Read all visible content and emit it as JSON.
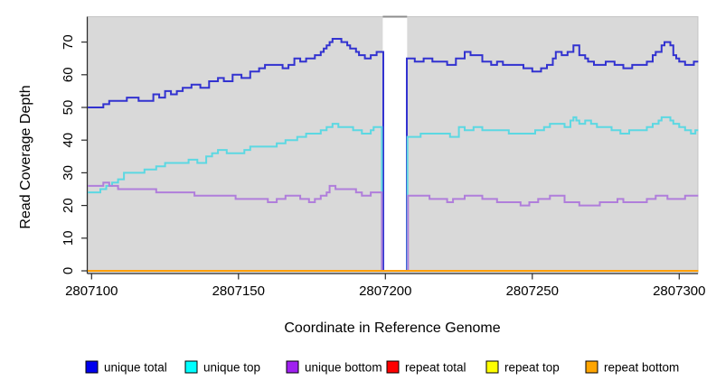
{
  "chart_data": {
    "type": "line",
    "subtype": "step",
    "title": "",
    "xlabel": "Coordinate in Reference Genome",
    "ylabel": "Read Coverage Depth",
    "xlim": [
      2807098.7,
      2807306.5
    ],
    "ylim": [
      0,
      78
    ],
    "x_ticks": [
      2807100,
      2807150,
      2807200,
      2807250,
      2807300
    ],
    "y_ticks": [
      0,
      10,
      20,
      30,
      40,
      50,
      60,
      70
    ],
    "plot_bg": "#d9d9d9",
    "grid": false,
    "legend_position": "bottom",
    "gap_region": {
      "x_start": 2807199.1,
      "x_end": 2807207.4
    },
    "series": [
      {
        "name": "unique total",
        "legend_color": "#0000ee",
        "line_color": "#3232d0",
        "values": [
          [
            2807098.7,
            50
          ],
          [
            2807104,
            51
          ],
          [
            2807106,
            52
          ],
          [
            2807112,
            53
          ],
          [
            2807116,
            52
          ],
          [
            2807121,
            54
          ],
          [
            2807123,
            53
          ],
          [
            2807125,
            55
          ],
          [
            2807127,
            54
          ],
          [
            2807129,
            55
          ],
          [
            2807131,
            56
          ],
          [
            2807134,
            57
          ],
          [
            2807137,
            56
          ],
          [
            2807140,
            58
          ],
          [
            2807143,
            59
          ],
          [
            2807145,
            58
          ],
          [
            2807148,
            60
          ],
          [
            2807151,
            59
          ],
          [
            2807154,
            61
          ],
          [
            2807157,
            62
          ],
          [
            2807159,
            63
          ],
          [
            2807165,
            62
          ],
          [
            2807167,
            63
          ],
          [
            2807169,
            65
          ],
          [
            2807171,
            64
          ],
          [
            2807173,
            65
          ],
          [
            2807176,
            66
          ],
          [
            2807178,
            67
          ],
          [
            2807179,
            68
          ],
          [
            2807180,
            69
          ],
          [
            2807181,
            70
          ],
          [
            2807182,
            71
          ],
          [
            2807185,
            70
          ],
          [
            2807187,
            69
          ],
          [
            2807188,
            68
          ],
          [
            2807190,
            67
          ],
          [
            2807191,
            66
          ],
          [
            2807193,
            65
          ],
          [
            2807195,
            66
          ],
          [
            2807197,
            67
          ],
          [
            2807199.3,
            0
          ],
          [
            2807207.3,
            65
          ],
          [
            2807210,
            64
          ],
          [
            2807213,
            65
          ],
          [
            2807216,
            64
          ],
          [
            2807221,
            63
          ],
          [
            2807224,
            65
          ],
          [
            2807227,
            67
          ],
          [
            2807229,
            66
          ],
          [
            2807233,
            64
          ],
          [
            2807236,
            63
          ],
          [
            2807238,
            64
          ],
          [
            2807240,
            63
          ],
          [
            2807247,
            62
          ],
          [
            2807250,
            61
          ],
          [
            2807253,
            62
          ],
          [
            2807255,
            63
          ],
          [
            2807257,
            65
          ],
          [
            2807258,
            67
          ],
          [
            2807260,
            66
          ],
          [
            2807262,
            67
          ],
          [
            2807264,
            69
          ],
          [
            2807266,
            66
          ],
          [
            2807268,
            65
          ],
          [
            2807269,
            64
          ],
          [
            2807271,
            63
          ],
          [
            2807275,
            64
          ],
          [
            2807278,
            63
          ],
          [
            2807281,
            62
          ],
          [
            2807284,
            63
          ],
          [
            2807289,
            64
          ],
          [
            2807291,
            66
          ],
          [
            2807292,
            67
          ],
          [
            2807294,
            69
          ],
          [
            2807295,
            70
          ],
          [
            2807297,
            69
          ],
          [
            2807298,
            66
          ],
          [
            2807299,
            65
          ],
          [
            2807300,
            64
          ],
          [
            2807302,
            63
          ],
          [
            2807305,
            64
          ]
        ]
      },
      {
        "name": "unique top",
        "legend_color": "#00ffff",
        "line_color": "#5cd8e2",
        "values": [
          [
            2807098.7,
            24
          ],
          [
            2807103,
            25
          ],
          [
            2807105,
            26
          ],
          [
            2807107,
            27
          ],
          [
            2807109,
            28
          ],
          [
            2807111,
            30
          ],
          [
            2807118,
            31
          ],
          [
            2807122,
            32
          ],
          [
            2807125,
            33
          ],
          [
            2807133,
            34
          ],
          [
            2807136,
            33
          ],
          [
            2807139,
            35
          ],
          [
            2807141,
            36
          ],
          [
            2807143,
            37
          ],
          [
            2807146,
            36
          ],
          [
            2807152,
            37
          ],
          [
            2807154,
            38
          ],
          [
            2807161,
            38
          ],
          [
            2807163,
            39
          ],
          [
            2807166,
            40
          ],
          [
            2807170,
            41
          ],
          [
            2807173,
            42
          ],
          [
            2807178,
            43
          ],
          [
            2807180,
            44
          ],
          [
            2807182,
            45
          ],
          [
            2807184,
            44
          ],
          [
            2807189,
            43
          ],
          [
            2807192,
            42
          ],
          [
            2807195,
            43
          ],
          [
            2807196,
            44
          ],
          [
            2807198.8,
            0
          ],
          [
            2807207.5,
            41
          ],
          [
            2807212,
            42
          ],
          [
            2807220,
            42
          ],
          [
            2807222,
            41
          ],
          [
            2807225,
            44
          ],
          [
            2807227,
            43
          ],
          [
            2807230,
            44
          ],
          [
            2807233,
            43
          ],
          [
            2807242,
            42
          ],
          [
            2807251,
            43
          ],
          [
            2807254,
            44
          ],
          [
            2807256,
            45
          ],
          [
            2807261,
            44
          ],
          [
            2807263,
            46
          ],
          [
            2807264,
            47
          ],
          [
            2807265,
            46
          ],
          [
            2807266,
            45
          ],
          [
            2807268,
            46
          ],
          [
            2807270,
            45
          ],
          [
            2807272,
            44
          ],
          [
            2807277,
            43
          ],
          [
            2807280,
            42
          ],
          [
            2807283,
            43
          ],
          [
            2807289,
            44
          ],
          [
            2807291,
            45
          ],
          [
            2807293,
            46
          ],
          [
            2807294,
            47
          ],
          [
            2807297,
            46
          ],
          [
            2807298,
            45
          ],
          [
            2807300,
            44
          ],
          [
            2807302,
            43
          ],
          [
            2807304,
            42
          ],
          [
            2807305.5,
            43
          ]
        ]
      },
      {
        "name": "unique bottom",
        "legend_color": "#a020f0",
        "line_color": "#b07edb",
        "values": [
          [
            2807098.7,
            26
          ],
          [
            2807104,
            27
          ],
          [
            2807106,
            26
          ],
          [
            2807109,
            25
          ],
          [
            2807122,
            24
          ],
          [
            2807135,
            23
          ],
          [
            2807149,
            22
          ],
          [
            2807160,
            21
          ],
          [
            2807163,
            22
          ],
          [
            2807166,
            23
          ],
          [
            2807171,
            22
          ],
          [
            2807174,
            21
          ],
          [
            2807176,
            22
          ],
          [
            2807178,
            23
          ],
          [
            2807180,
            24
          ],
          [
            2807181,
            26
          ],
          [
            2807183,
            25
          ],
          [
            2807190,
            24
          ],
          [
            2807192,
            23
          ],
          [
            2807195,
            24
          ],
          [
            2807198.8,
            0
          ],
          [
            2807207.7,
            23
          ],
          [
            2807215,
            22
          ],
          [
            2807221,
            21
          ],
          [
            2807223,
            22
          ],
          [
            2807227,
            23
          ],
          [
            2807233,
            22
          ],
          [
            2807238,
            21
          ],
          [
            2807246,
            20
          ],
          [
            2807249,
            21
          ],
          [
            2807252,
            22
          ],
          [
            2807256,
            23
          ],
          [
            2807261,
            21
          ],
          [
            2807266,
            20
          ],
          [
            2807273,
            21
          ],
          [
            2807279,
            22
          ],
          [
            2807281,
            21
          ],
          [
            2807289,
            22
          ],
          [
            2807292,
            23
          ],
          [
            2807296,
            22
          ],
          [
            2807302,
            23
          ]
        ]
      },
      {
        "name": "repeat total",
        "legend_color": "#ff0000",
        "line_color": "#ee0000",
        "values": [
          [
            2807098.7,
            0
          ],
          [
            2807306,
            0
          ]
        ]
      },
      {
        "name": "repeat top",
        "legend_color": "#ffff00",
        "line_color": "#f0f000",
        "values": [
          [
            2807098.7,
            0
          ],
          [
            2807306,
            0
          ]
        ]
      },
      {
        "name": "repeat bottom",
        "legend_color": "#ffa500",
        "line_color": "#ff9e00",
        "values": [
          [
            2807098.7,
            0
          ],
          [
            2807306,
            0
          ]
        ]
      }
    ]
  }
}
